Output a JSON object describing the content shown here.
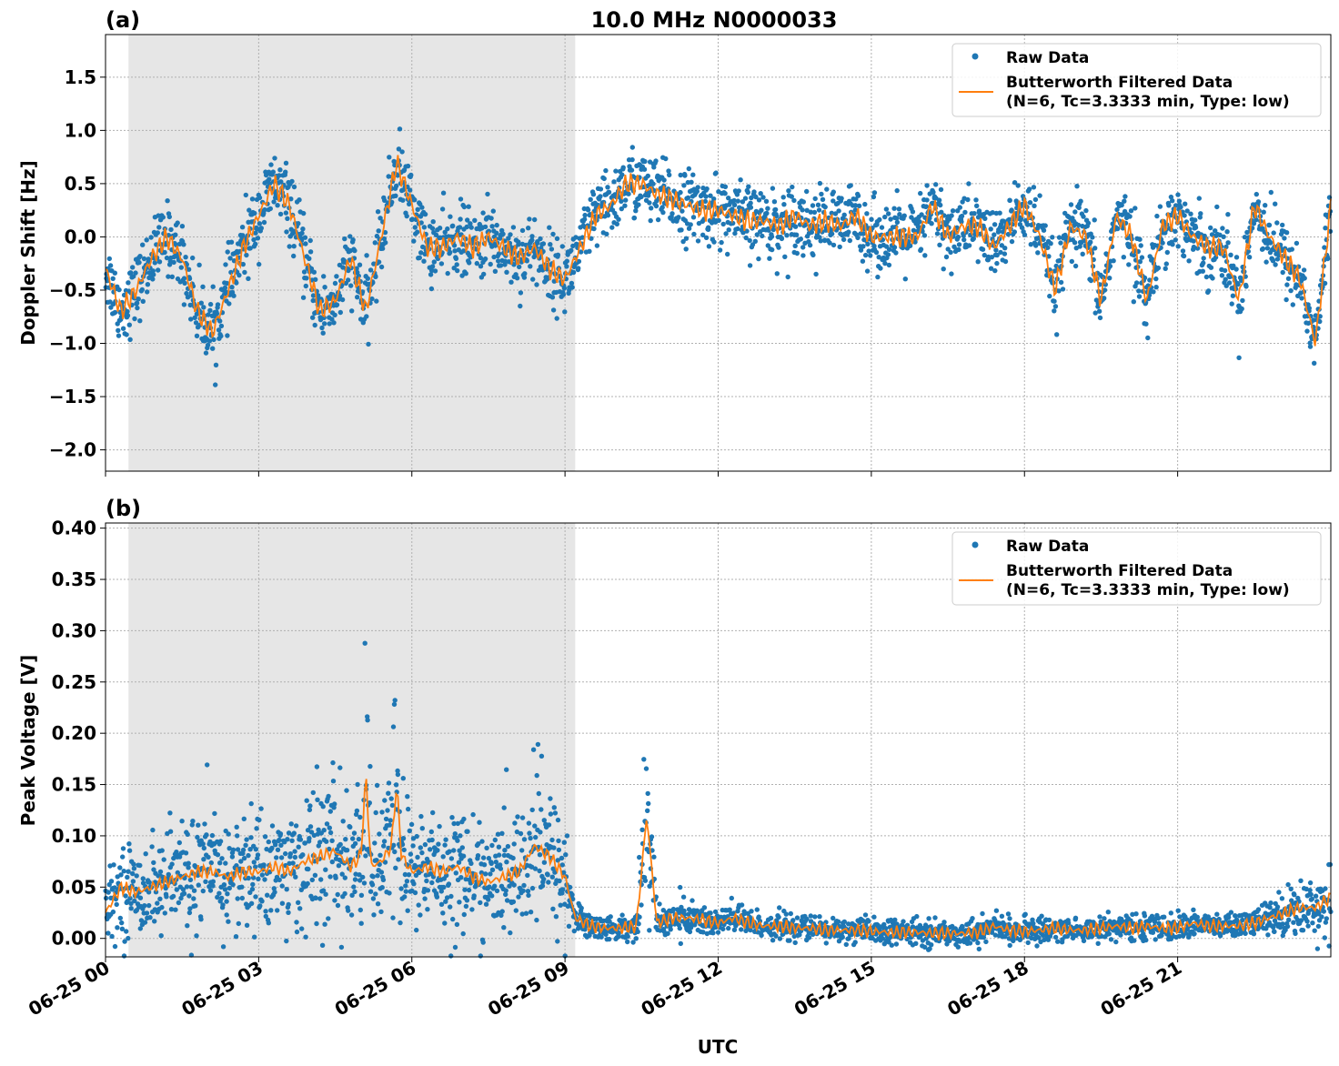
{
  "title": "10.0 MHz N0000033",
  "colors": {
    "raw": "#1f77b4",
    "filtered": "#ff7f0e",
    "shade": "#e6e6e6",
    "grid": "#b0b0b0"
  },
  "chart_data": [
    {
      "type": "scatter",
      "panel_label": "(a)",
      "title": "10.0 MHz N0000033",
      "ylabel": "Doppler Shift [Hz]",
      "xlabel": "",
      "xlim_hours": [
        0,
        24
      ],
      "ylim": [
        -2.2,
        1.9
      ],
      "y_ticks": [
        -2.0,
        -1.5,
        -1.0,
        -0.5,
        0.0,
        0.5,
        1.0,
        1.5
      ],
      "y_tick_labels": [
        "−2.0",
        "−1.5",
        "−1.0",
        "−0.5",
        "0.0",
        "0.5",
        "1.0",
        "1.5"
      ],
      "x_ticks_hours": [
        0,
        3,
        6,
        9,
        12,
        15,
        18,
        21
      ],
      "x_tick_labels": [],
      "shaded_hours": [
        0.45,
        9.2
      ],
      "grid": true,
      "legend_position": "upper right",
      "legend": [
        "Raw Data",
        "Butterworth Filtered Data",
        "(N=6, Tc=3.3333 min, Type: low)"
      ],
      "series": [
        {
          "name": "Raw Data",
          "style": "dots",
          "spread": 0.16,
          "x_hours": [
            0,
            0.3,
            0.6,
            0.9,
            1.2,
            1.5,
            1.8,
            2.1,
            2.4,
            2.7,
            3.0,
            3.3,
            3.6,
            3.9,
            4.2,
            4.5,
            4.8,
            5.1,
            5.4,
            5.7,
            6.0,
            6.3,
            6.6,
            6.9,
            7.2,
            7.5,
            7.8,
            8.1,
            8.4,
            8.7,
            9.0,
            9.3,
            9.6,
            9.9,
            10.2,
            10.5,
            10.8,
            11.1,
            11.4,
            11.7,
            12.0,
            12.3,
            12.6,
            12.9,
            13.2,
            13.5,
            13.8,
            14.1,
            14.4,
            14.7,
            15.0,
            15.3,
            15.6,
            15.9,
            16.2,
            16.5,
            16.8,
            17.1,
            17.4,
            17.7,
            18.0,
            18.3,
            18.6,
            18.9,
            19.2,
            19.5,
            19.8,
            20.1,
            20.4,
            20.7,
            21.0,
            21.3,
            21.6,
            21.9,
            22.2,
            22.5,
            22.8,
            23.1,
            23.4,
            23.7,
            24.0
          ],
          "y": [
            -0.3,
            -0.7,
            -0.5,
            -0.2,
            0.0,
            -0.2,
            -0.7,
            -0.9,
            -0.5,
            -0.1,
            0.2,
            0.5,
            0.3,
            -0.2,
            -0.7,
            -0.6,
            -0.2,
            -0.7,
            0.0,
            0.7,
            0.3,
            -0.1,
            -0.1,
            0.0,
            -0.1,
            0.0,
            -0.1,
            -0.2,
            -0.1,
            -0.3,
            -0.4,
            -0.1,
            0.2,
            0.3,
            0.5,
            0.5,
            0.4,
            0.35,
            0.3,
            0.25,
            0.25,
            0.2,
            0.15,
            0.15,
            0.1,
            0.2,
            0.1,
            0.15,
            0.1,
            0.2,
            0.0,
            0.0,
            0.0,
            0.0,
            0.3,
            0.0,
            0.1,
            0.1,
            -0.1,
            0.1,
            0.3,
            0.0,
            -0.5,
            0.1,
            0.0,
            -0.6,
            0.2,
            0.0,
            -0.6,
            0.1,
            0.2,
            0.0,
            -0.1,
            -0.1,
            -0.6,
            0.3,
            0.0,
            -0.2,
            -0.4,
            -1.0,
            0.3
          ]
        },
        {
          "name": "Butterworth Filtered Data",
          "style": "line",
          "x_hours": [
            0,
            0.3,
            0.6,
            0.9,
            1.2,
            1.5,
            1.8,
            2.1,
            2.4,
            2.7,
            3.0,
            3.3,
            3.6,
            3.9,
            4.2,
            4.5,
            4.8,
            5.1,
            5.4,
            5.7,
            6.0,
            6.3,
            6.6,
            6.9,
            7.2,
            7.5,
            7.8,
            8.1,
            8.4,
            8.7,
            9.0,
            9.3,
            9.6,
            9.9,
            10.2,
            10.5,
            10.8,
            11.1,
            11.4,
            11.7,
            12.0,
            12.3,
            12.6,
            12.9,
            13.2,
            13.5,
            13.8,
            14.1,
            14.4,
            14.7,
            15.0,
            15.3,
            15.6,
            15.9,
            16.2,
            16.5,
            16.8,
            17.1,
            17.4,
            17.7,
            18.0,
            18.3,
            18.6,
            18.9,
            19.2,
            19.5,
            19.8,
            20.1,
            20.4,
            20.7,
            21.0,
            21.3,
            21.6,
            21.9,
            22.2,
            22.5,
            22.8,
            23.1,
            23.4,
            23.7,
            24.0
          ],
          "y": [
            -0.3,
            -0.7,
            -0.5,
            -0.2,
            0.0,
            -0.2,
            -0.7,
            -0.9,
            -0.5,
            -0.1,
            0.2,
            0.5,
            0.3,
            -0.2,
            -0.7,
            -0.6,
            -0.2,
            -0.7,
            0.0,
            0.7,
            0.3,
            -0.1,
            -0.1,
            0.0,
            -0.1,
            0.0,
            -0.1,
            -0.2,
            -0.1,
            -0.3,
            -0.4,
            -0.1,
            0.2,
            0.3,
            0.5,
            0.5,
            0.4,
            0.35,
            0.3,
            0.25,
            0.25,
            0.2,
            0.15,
            0.15,
            0.1,
            0.2,
            0.1,
            0.15,
            0.1,
            0.2,
            0.0,
            0.0,
            0.0,
            0.0,
            0.3,
            0.0,
            0.1,
            0.1,
            -0.1,
            0.1,
            0.3,
            0.0,
            -0.5,
            0.1,
            0.0,
            -0.6,
            0.2,
            0.0,
            -0.6,
            0.1,
            0.2,
            0.0,
            -0.1,
            -0.1,
            -0.6,
            0.3,
            0.0,
            -0.2,
            -0.4,
            -1.0,
            0.3
          ]
        }
      ]
    },
    {
      "type": "scatter",
      "panel_label": "(b)",
      "ylabel": "Peak Voltage [V]",
      "xlabel": "UTC",
      "xlim_hours": [
        0,
        24
      ],
      "ylim": [
        -0.018,
        0.405
      ],
      "y_ticks": [
        0.0,
        0.05,
        0.1,
        0.15,
        0.2,
        0.25,
        0.3,
        0.35,
        0.4
      ],
      "y_tick_labels": [
        "0.00",
        "0.05",
        "0.10",
        "0.15",
        "0.20",
        "0.25",
        "0.30",
        "0.35",
        "0.40"
      ],
      "x_ticks_hours": [
        0,
        3,
        6,
        9,
        12,
        15,
        18,
        21
      ],
      "x_tick_labels": [
        "06-25 00",
        "06-25 03",
        "06-25 06",
        "06-25 09",
        "06-25 12",
        "06-25 15",
        "06-25 18",
        "06-25 21"
      ],
      "shaded_hours": [
        0.45,
        9.2
      ],
      "grid": true,
      "legend_position": "upper right",
      "legend": [
        "Raw Data",
        "Butterworth Filtered Data",
        "(N=6, Tc=3.3333 min, Type: low)"
      ],
      "series": [
        {
          "name": "Raw Data",
          "style": "dots",
          "spread": 0.025,
          "x_hours": [
            0,
            0.3,
            0.6,
            0.9,
            1.2,
            1.5,
            1.8,
            2.1,
            2.4,
            2.7,
            3.0,
            3.3,
            3.6,
            3.9,
            4.2,
            4.5,
            4.8,
            5.0,
            5.1,
            5.2,
            5.4,
            5.6,
            5.7,
            5.8,
            6.0,
            6.3,
            6.6,
            6.9,
            7.2,
            7.5,
            7.8,
            8.1,
            8.4,
            8.7,
            9.0,
            9.2,
            9.5,
            9.8,
            10.1,
            10.4,
            10.6,
            10.8,
            11.1,
            11.4,
            11.7,
            12.0,
            12.3,
            12.6,
            12.9,
            13.2,
            13.5,
            13.8,
            14.1,
            14.4,
            14.7,
            15.0,
            15.3,
            15.6,
            15.9,
            16.2,
            16.5,
            16.8,
            17.1,
            17.4,
            17.7,
            18.0,
            18.3,
            18.6,
            18.9,
            19.2,
            19.5,
            19.8,
            20.1,
            20.4,
            20.7,
            21.0,
            21.3,
            21.6,
            21.9,
            22.2,
            22.5,
            22.8,
            23.1,
            23.4,
            23.7,
            24.0
          ],
          "y": [
            0.025,
            0.05,
            0.045,
            0.05,
            0.055,
            0.06,
            0.065,
            0.065,
            0.06,
            0.065,
            0.065,
            0.07,
            0.065,
            0.075,
            0.08,
            0.085,
            0.07,
            0.08,
            0.16,
            0.07,
            0.075,
            0.09,
            0.15,
            0.08,
            0.065,
            0.07,
            0.065,
            0.07,
            0.06,
            0.055,
            0.06,
            0.065,
            0.09,
            0.08,
            0.06,
            0.02,
            0.012,
            0.01,
            0.01,
            0.012,
            0.12,
            0.015,
            0.02,
            0.02,
            0.018,
            0.015,
            0.02,
            0.015,
            0.012,
            0.012,
            0.01,
            0.01,
            0.008,
            0.008,
            0.008,
            0.007,
            0.006,
            0.006,
            0.006,
            0.005,
            0.005,
            0.005,
            0.006,
            0.012,
            0.008,
            0.007,
            0.008,
            0.01,
            0.008,
            0.008,
            0.01,
            0.012,
            0.01,
            0.012,
            0.01,
            0.01,
            0.015,
            0.012,
            0.012,
            0.012,
            0.015,
            0.02,
            0.025,
            0.03,
            0.03,
            0.04
          ]
        },
        {
          "name": "Butterworth Filtered Data",
          "style": "line",
          "x_hours": [
            0,
            0.3,
            0.6,
            0.9,
            1.2,
            1.5,
            1.8,
            2.1,
            2.4,
            2.7,
            3.0,
            3.3,
            3.6,
            3.9,
            4.2,
            4.5,
            4.8,
            5.0,
            5.1,
            5.2,
            5.4,
            5.6,
            5.7,
            5.8,
            6.0,
            6.3,
            6.6,
            6.9,
            7.2,
            7.5,
            7.8,
            8.1,
            8.4,
            8.7,
            9.0,
            9.2,
            9.5,
            9.8,
            10.1,
            10.4,
            10.6,
            10.8,
            11.1,
            11.4,
            11.7,
            12.0,
            12.3,
            12.6,
            12.9,
            13.2,
            13.5,
            13.8,
            14.1,
            14.4,
            14.7,
            15.0,
            15.3,
            15.6,
            15.9,
            16.2,
            16.5,
            16.8,
            17.1,
            17.4,
            17.7,
            18.0,
            18.3,
            18.6,
            18.9,
            19.2,
            19.5,
            19.8,
            20.1,
            20.4,
            20.7,
            21.0,
            21.3,
            21.6,
            21.9,
            22.2,
            22.5,
            22.8,
            23.1,
            23.4,
            23.7,
            24.0
          ],
          "y": [
            0.025,
            0.05,
            0.045,
            0.05,
            0.055,
            0.06,
            0.065,
            0.065,
            0.06,
            0.065,
            0.065,
            0.07,
            0.065,
            0.075,
            0.08,
            0.085,
            0.07,
            0.08,
            0.16,
            0.07,
            0.075,
            0.09,
            0.15,
            0.08,
            0.065,
            0.07,
            0.065,
            0.07,
            0.06,
            0.055,
            0.06,
            0.065,
            0.09,
            0.08,
            0.06,
            0.02,
            0.012,
            0.01,
            0.01,
            0.012,
            0.12,
            0.015,
            0.02,
            0.02,
            0.018,
            0.015,
            0.02,
            0.015,
            0.012,
            0.012,
            0.01,
            0.01,
            0.008,
            0.008,
            0.008,
            0.007,
            0.006,
            0.006,
            0.006,
            0.005,
            0.005,
            0.005,
            0.006,
            0.012,
            0.008,
            0.007,
            0.008,
            0.01,
            0.008,
            0.008,
            0.01,
            0.012,
            0.01,
            0.012,
            0.01,
            0.01,
            0.015,
            0.012,
            0.012,
            0.012,
            0.015,
            0.02,
            0.025,
            0.03,
            0.03,
            0.04
          ]
        }
      ]
    }
  ]
}
